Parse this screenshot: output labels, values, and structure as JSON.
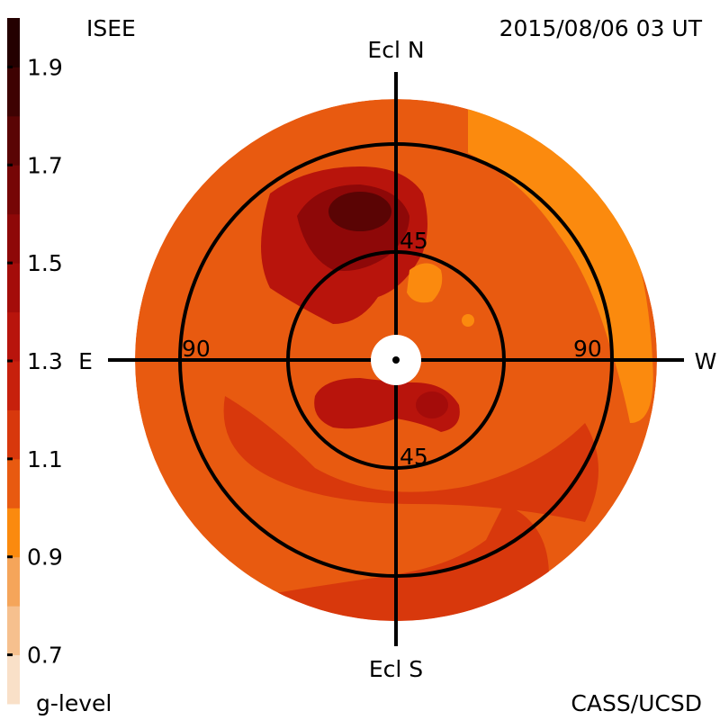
{
  "header": {
    "source": "ISEE",
    "timestamp": "2015/08/06 03 UT"
  },
  "footer": {
    "colorbar_label": "g-level",
    "credit": "CASS/UCSD"
  },
  "directions": {
    "north": "Ecl N",
    "south": "Ecl S",
    "east": "E",
    "west": "W"
  },
  "ring_labels": {
    "inner_top": "45",
    "inner_bottom": "45",
    "outer_left": "90",
    "outer_right": "90"
  },
  "chart_data": {
    "type": "heatmap",
    "projection": "polar sky map centered on Sun",
    "colorbar": {
      "label": "g-level",
      "range": [
        0.6,
        2.0
      ],
      "ticks": [
        1.9,
        1.7,
        1.5,
        1.3,
        1.1,
        0.9,
        0.7
      ],
      "tick_labels": [
        "1.9",
        "1.7",
        "1.5",
        "1.3",
        "1.1",
        "0.9",
        "0.7"
      ],
      "bands": [
        {
          "from": 0.6,
          "to": 0.7,
          "color": "#f9e0c8"
        },
        {
          "from": 0.7,
          "to": 0.8,
          "color": "#f6c08e"
        },
        {
          "from": 0.8,
          "to": 0.9,
          "color": "#f5a55a"
        },
        {
          "from": 0.9,
          "to": 1.0,
          "color": "#fb8a0e"
        },
        {
          "from": 1.0,
          "to": 1.1,
          "color": "#e85a10"
        },
        {
          "from": 1.1,
          "to": 1.2,
          "color": "#d8380c"
        },
        {
          "from": 1.2,
          "to": 1.3,
          "color": "#c7200c"
        },
        {
          "from": 1.3,
          "to": 1.4,
          "color": "#b8140c"
        },
        {
          "from": 1.4,
          "to": 1.5,
          "color": "#a40c0a"
        },
        {
          "from": 1.5,
          "to": 1.6,
          "color": "#8e0808"
        },
        {
          "from": 1.6,
          "to": 1.7,
          "color": "#760606"
        },
        {
          "from": 1.7,
          "to": 1.8,
          "color": "#5a0404"
        },
        {
          "from": 1.8,
          "to": 1.9,
          "color": "#3e0202"
        },
        {
          "from": 1.9,
          "to": 2.0,
          "color": "#240000"
        }
      ]
    },
    "rings_elongation_deg": [
      45,
      90
    ],
    "max_elongation_deg": 120,
    "regions": [
      {
        "name": "background",
        "level": 1.05
      },
      {
        "name": "west-limb-bright",
        "level": 0.95
      },
      {
        "name": "south-west-band",
        "level": 1.15
      },
      {
        "name": "south-ring",
        "level": 1.15
      },
      {
        "name": "north-east-enhancement",
        "level": 1.3
      },
      {
        "name": "north-core",
        "level": 1.5
      },
      {
        "name": "north-peak",
        "level": 1.7
      },
      {
        "name": "south-east-enhancement",
        "level": 1.3
      },
      {
        "name": "south-east-core",
        "level": 1.45
      },
      {
        "name": "north-west-blob",
        "level": 0.95
      },
      {
        "name": "west-small-blob",
        "level": 0.9
      }
    ]
  }
}
